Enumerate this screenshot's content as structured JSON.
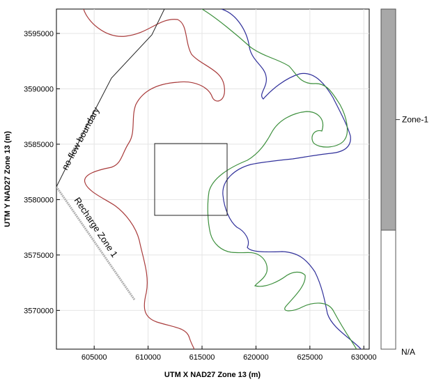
{
  "map": {
    "x_axis": {
      "label": "UTM X NAD27 Zone 13 (m)",
      "range": [
        601500,
        630500
      ],
      "ticks": [
        "605000",
        "610000",
        "615000",
        "620000",
        "625000",
        "630000"
      ]
    },
    "y_axis": {
      "label": "UTM Y NAD27 Zone 13 (m)",
      "range": [
        3566500,
        3597200
      ],
      "ticks": [
        "3570000",
        "3575000",
        "3580000",
        "3585000",
        "3590000",
        "3595000"
      ]
    },
    "grid": true,
    "annotations": {
      "no_flow": "no-flow boundary",
      "recharge": "Recharge Zone 1"
    },
    "colors": {
      "red_contour": "#a83a3a",
      "blue_contour": "#2f2f9a",
      "green_contour": "#3c8f3c",
      "boundary": "#222222",
      "recharge": "#b0b0b0",
      "zone_fill": "#a8a8a8"
    }
  },
  "legend": {
    "zone1": "Zone-1",
    "na": "N/A",
    "zone1_fraction": 0.65
  }
}
